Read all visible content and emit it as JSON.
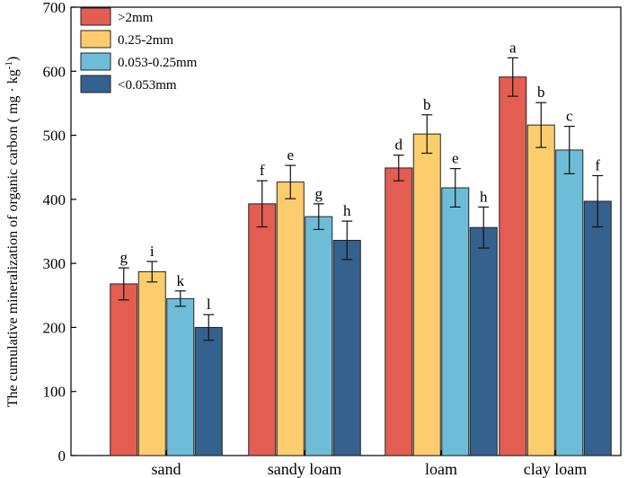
{
  "chart_data": {
    "type": "bar",
    "title": "",
    "xlabel": "",
    "ylabel": "The cumulative mineralization of organic carbon ( mg · kg",
    "ylabel_superscript": "-1",
    "ylabel_close": ")",
    "ylim": [
      0,
      700
    ],
    "yticks": [
      0,
      100,
      200,
      300,
      400,
      500,
      600,
      700
    ],
    "categories": [
      "sand",
      "sandy loam",
      "loam",
      "clay loam"
    ],
    "legend_position": "top-left",
    "series": [
      {
        "name": ">2mm",
        "color": "#E35D52",
        "values": [
          268,
          393,
          449,
          591
        ],
        "errors": [
          25,
          36,
          20,
          30
        ],
        "labels": [
          "g",
          "f",
          "d",
          "a"
        ]
      },
      {
        "name": "0.25-2mm",
        "color": "#FDCD6D",
        "values": [
          287,
          427,
          502,
          516
        ],
        "errors": [
          16,
          26,
          30,
          35
        ],
        "labels": [
          "i",
          "e",
          "b",
          "b"
        ]
      },
      {
        "name": "0.053-0.25mm",
        "color": "#6EBDD8",
        "values": [
          245,
          373,
          418,
          477
        ],
        "errors": [
          12,
          20,
          30,
          37
        ],
        "labels": [
          "k",
          "g",
          "e",
          "c"
        ]
      },
      {
        "name": "<0.053mm",
        "color": "#35618F",
        "values": [
          200,
          336,
          356,
          397
        ],
        "errors": [
          20,
          30,
          32,
          40
        ],
        "labels": [
          "l",
          "h",
          "h",
          "f"
        ]
      }
    ]
  }
}
